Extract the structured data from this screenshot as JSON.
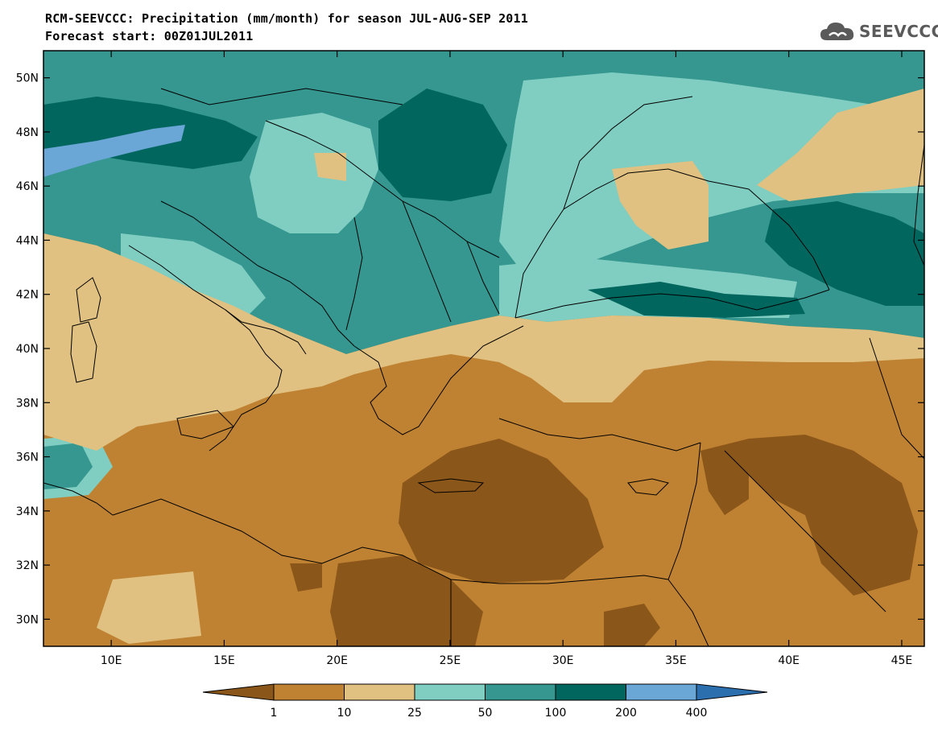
{
  "title": {
    "line1": "RCM-SEEVCCC: Precipitation (mm/month) for season JUL-AUG-SEP 2011",
    "line2": "Forecast start: 00Z01JUL2011"
  },
  "logo": {
    "text": "SEEVCCC",
    "icon": "cloud-icon"
  },
  "map": {
    "lat_labels": [
      "50N",
      "48N",
      "46N",
      "44N",
      "42N",
      "40N",
      "38N",
      "36N",
      "34N",
      "32N",
      "30N"
    ],
    "lon_labels": [
      "10E",
      "15E",
      "20E",
      "25E",
      "30E",
      "35E",
      "40E",
      "45E"
    ],
    "lat_range": [
      29,
      51
    ],
    "lon_range": [
      7,
      46
    ]
  },
  "colorbar": {
    "thresholds": [
      "1",
      "10",
      "25",
      "50",
      "100",
      "200",
      "400"
    ],
    "colors": [
      "#8b5619",
      "#bf8232",
      "#e0c181",
      "#80cdc1",
      "#35978f",
      "#01665e",
      "#6aa6d6",
      "#2c6fae"
    ]
  }
}
